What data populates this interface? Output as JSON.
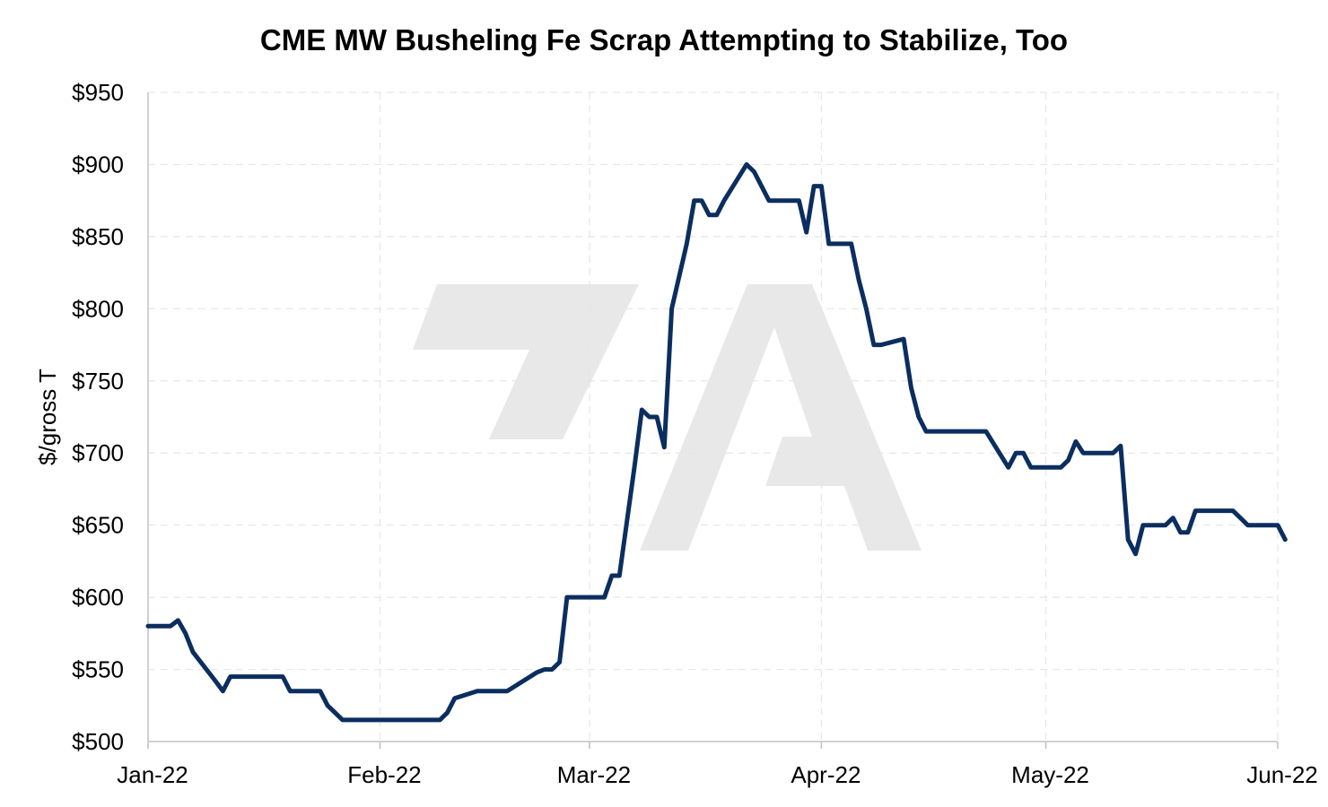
{
  "chart_data": {
    "type": "line",
    "title": "CME MW Busheling Fe Scrap Attempting to Stabilize, Too",
    "ylabel": "$/gross T",
    "xlabel": "",
    "ylim": [
      500,
      950
    ],
    "y_ticks": [
      500,
      550,
      600,
      650,
      700,
      750,
      800,
      850,
      900,
      950
    ],
    "y_tick_labels": [
      "$500",
      "$550",
      "$600",
      "$650",
      "$700",
      "$750",
      "$800",
      "$850",
      "$900",
      "$950"
    ],
    "x_ticks": [
      "2022-01-01",
      "2022-02-01",
      "2022-03-01",
      "2022-04-01",
      "2022-05-01",
      "2022-06-01"
    ],
    "x_tick_labels": [
      "Jan-22",
      "Feb-22",
      "Mar-22",
      "Apr-22",
      "May-22",
      "Jun-22"
    ],
    "grid": true,
    "legend": "none",
    "series": [
      {
        "color": "#0b2e5f",
        "points": [
          [
            "2022-01-01",
            580
          ],
          [
            "2022-01-04",
            580
          ],
          [
            "2022-01-05",
            584
          ],
          [
            "2022-01-06",
            575
          ],
          [
            "2022-01-07",
            562
          ],
          [
            "2022-01-10",
            542
          ],
          [
            "2022-01-11",
            535
          ],
          [
            "2022-01-12",
            545
          ],
          [
            "2022-01-19",
            545
          ],
          [
            "2022-01-20",
            535
          ],
          [
            "2022-01-24",
            535
          ],
          [
            "2022-01-25",
            525
          ],
          [
            "2022-01-27",
            515
          ],
          [
            "2022-02-09",
            515
          ],
          [
            "2022-02-10",
            520
          ],
          [
            "2022-02-11",
            530
          ],
          [
            "2022-02-14",
            535
          ],
          [
            "2022-02-18",
            535
          ],
          [
            "2022-02-22",
            548
          ],
          [
            "2022-02-23",
            550
          ],
          [
            "2022-02-24",
            550
          ],
          [
            "2022-02-25",
            555
          ],
          [
            "2022-02-26",
            600
          ],
          [
            "2022-03-03",
            600
          ],
          [
            "2022-03-04",
            615
          ],
          [
            "2022-03-05",
            615
          ],
          [
            "2022-03-07",
            690
          ],
          [
            "2022-03-08",
            730
          ],
          [
            "2022-03-09",
            725
          ],
          [
            "2022-03-10",
            725
          ],
          [
            "2022-03-11",
            704
          ],
          [
            "2022-03-12",
            800
          ],
          [
            "2022-03-14",
            845
          ],
          [
            "2022-03-15",
            875
          ],
          [
            "2022-03-16",
            875
          ],
          [
            "2022-03-17",
            865
          ],
          [
            "2022-03-18",
            865
          ],
          [
            "2022-03-19",
            875
          ],
          [
            "2022-03-22",
            900
          ],
          [
            "2022-03-23",
            895
          ],
          [
            "2022-03-25",
            875
          ],
          [
            "2022-03-29",
            875
          ],
          [
            "2022-03-30",
            853
          ],
          [
            "2022-03-31",
            885
          ],
          [
            "2022-04-01",
            885
          ],
          [
            "2022-04-02",
            845
          ],
          [
            "2022-04-05",
            845
          ],
          [
            "2022-04-06",
            820
          ],
          [
            "2022-04-07",
            800
          ],
          [
            "2022-04-08",
            775
          ],
          [
            "2022-04-09",
            775
          ],
          [
            "2022-04-12",
            779
          ],
          [
            "2022-04-13",
            745
          ],
          [
            "2022-04-14",
            725
          ],
          [
            "2022-04-15",
            715
          ],
          [
            "2022-04-23",
            715
          ],
          [
            "2022-04-26",
            690
          ],
          [
            "2022-04-27",
            700
          ],
          [
            "2022-04-28",
            700
          ],
          [
            "2022-04-29",
            690
          ],
          [
            "2022-05-03",
            690
          ],
          [
            "2022-05-04",
            695
          ],
          [
            "2022-05-05",
            708
          ],
          [
            "2022-05-06",
            700
          ],
          [
            "2022-05-10",
            700
          ],
          [
            "2022-05-11",
            705
          ],
          [
            "2022-05-12",
            640
          ],
          [
            "2022-05-13",
            630
          ],
          [
            "2022-05-14",
            650
          ],
          [
            "2022-05-17",
            650
          ],
          [
            "2022-05-18",
            655
          ],
          [
            "2022-05-19",
            645
          ],
          [
            "2022-05-20",
            645
          ],
          [
            "2022-05-21",
            660
          ],
          [
            "2022-05-26",
            660
          ],
          [
            "2022-05-27",
            655
          ],
          [
            "2022-05-28",
            650
          ],
          [
            "2022-06-01",
            650
          ],
          [
            "2022-06-02",
            640
          ]
        ]
      }
    ]
  },
  "watermark": {
    "fill": "#e8e8e8"
  }
}
